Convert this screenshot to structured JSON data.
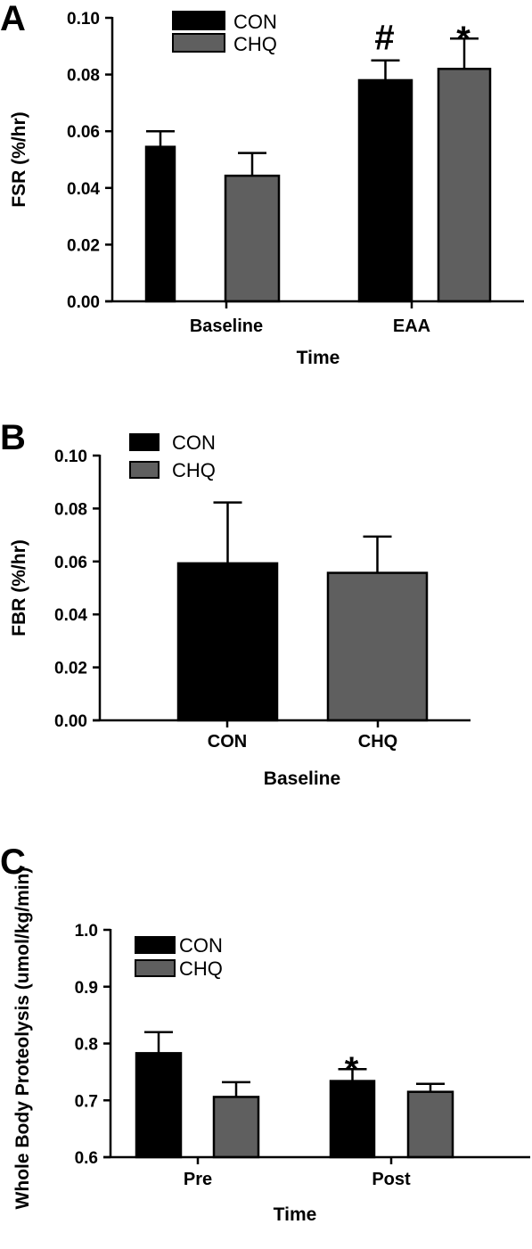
{
  "colors": {
    "CON": "#000000",
    "CHQ": "#5f5f5f",
    "axis": "#000000"
  },
  "chart_data": [
    {
      "panel": "A",
      "type": "bar",
      "categories": [
        "Baseline",
        "EAA"
      ],
      "series": [
        {
          "name": "CON",
          "values": [
            0.0545,
            0.078
          ],
          "errors": [
            0.0055,
            0.007
          ]
        },
        {
          "name": "CHQ",
          "values": [
            0.0443,
            0.082
          ],
          "errors": [
            0.008,
            0.0107
          ]
        }
      ],
      "xlabel": "Time",
      "ylabel": "FSR (%/hr)",
      "ylim": [
        0,
        0.1
      ],
      "yticks": [
        "0.00",
        "0.02",
        "0.04",
        "0.06",
        "0.08",
        "0.10"
      ],
      "annotations": [
        {
          "text": "#",
          "category": "EAA",
          "series": "CON"
        },
        {
          "text": "*",
          "category": "EAA",
          "series": "CHQ"
        }
      ],
      "legend": "top-left"
    },
    {
      "panel": "B",
      "type": "bar",
      "categories": [
        "CON",
        "CHQ"
      ],
      "series": [
        {
          "name": "CON",
          "values": [
            0.0593,
            null
          ],
          "errors": [
            0.023,
            null
          ]
        },
        {
          "name": "CHQ",
          "values": [
            null,
            0.0557
          ],
          "errors": [
            null,
            0.0137
          ]
        }
      ],
      "xlabel": "Baseline",
      "ylabel": "FBR (%/hr)",
      "ylim": [
        0,
        0.1
      ],
      "yticks": [
        "0.00",
        "0.02",
        "0.04",
        "0.06",
        "0.08",
        "0.10"
      ],
      "annotations": [],
      "legend": "top-left"
    },
    {
      "panel": "C",
      "type": "bar",
      "categories": [
        "Pre",
        "Post"
      ],
      "series": [
        {
          "name": "CON",
          "values": [
            0.783,
            0.734
          ],
          "errors": [
            0.037,
            0.021
          ]
        },
        {
          "name": "CHQ",
          "values": [
            0.706,
            0.715
          ],
          "errors": [
            0.026,
            0.014
          ]
        }
      ],
      "xlabel": "Time",
      "ylabel": "Whole Body Proteolysis (umol/kg/min)",
      "ylim": [
        0.6,
        1.0
      ],
      "yticks": [
        "0.6",
        "0.7",
        "0.8",
        "0.9",
        "1.0"
      ],
      "annotations": [
        {
          "text": "*",
          "category": "Post",
          "series": "CON"
        }
      ],
      "legend": "top-left"
    }
  ]
}
